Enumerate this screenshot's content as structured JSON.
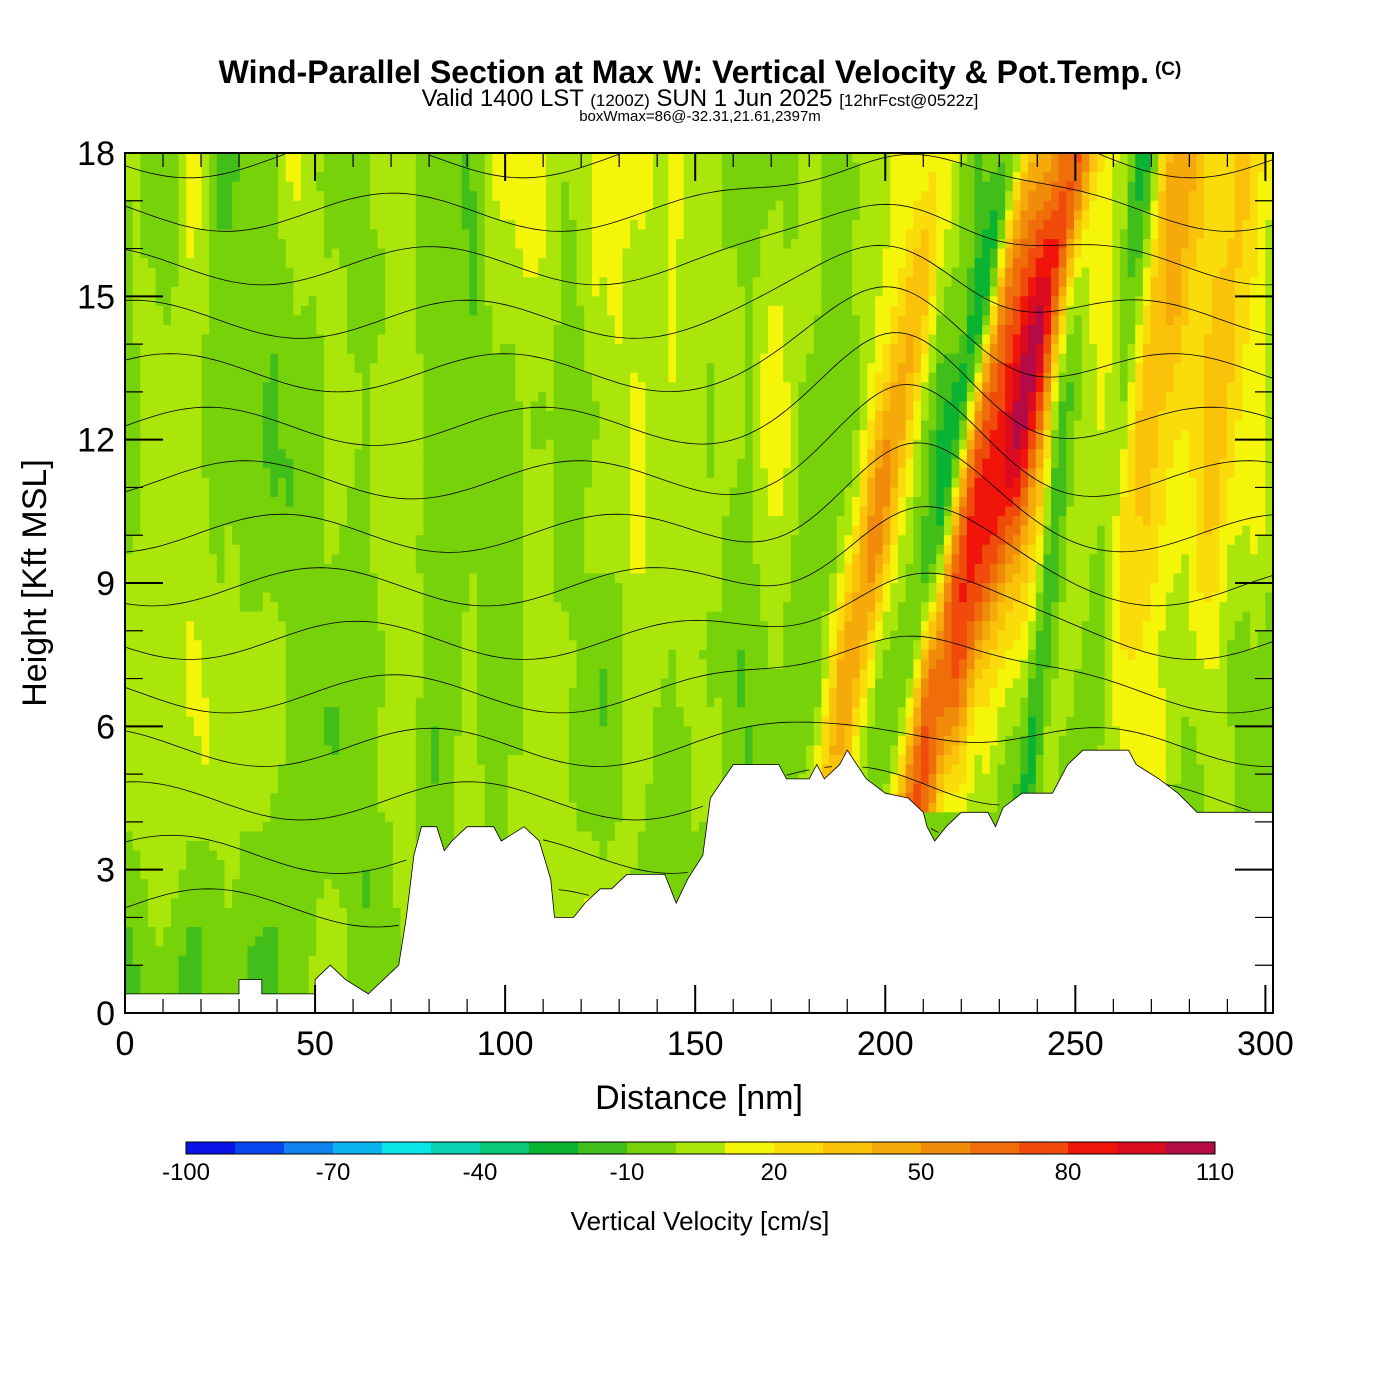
{
  "title": "Wind-Parallel Section at Max W: Vertical Velocity & Pot.Temp.",
  "copyright_mark": "(C)",
  "subtitle": {
    "main": "Valid 1400 LST",
    "utc": "(1200Z)",
    "date": "SUN 1 Jun 2025",
    "forecast": "[12hrFcst@0522z]"
  },
  "box_stat": "boxWmax=86@-32.31,21.61,2397m",
  "chart_data": {
    "type": "heatmap",
    "xlabel": "Distance [nm]",
    "ylabel": "Height [Kft MSL]",
    "xlim": [
      0,
      302
    ],
    "ylim": [
      0,
      18
    ],
    "xticks": [
      "0",
      "50",
      "100",
      "150",
      "200",
      "250",
      "300"
    ],
    "yticks": [
      "0",
      "3",
      "6",
      "9",
      "12",
      "15",
      "18"
    ],
    "colorbar": {
      "label": "Vertical Velocity [cm/s]",
      "tick_labels": [
        "-100",
        "-70",
        "-40",
        "-10",
        "20",
        "50",
        "80",
        "110"
      ],
      "bounds": [
        -100,
        -90,
        -80,
        -70,
        -60,
        -50,
        -40,
        -30,
        -20,
        -10,
        0,
        10,
        20,
        30,
        40,
        50,
        60,
        70,
        80,
        90,
        100,
        110
      ],
      "colors": [
        "#0a14e6",
        "#0a46f0",
        "#0f82f0",
        "#0ab4f0",
        "#0ae6e6",
        "#0ad2b4",
        "#0ac878",
        "#0ab432",
        "#41be19",
        "#78d20a",
        "#aae60a",
        "#f5f50a",
        "#fadc0a",
        "#fac30a",
        "#f5aa0a",
        "#f08c0a",
        "#f06e0a",
        "#f04b0a",
        "#f0140a",
        "#dc0a1e",
        "#b40a46"
      ]
    },
    "terrain_kft": [
      [
        0,
        0.4
      ],
      [
        30,
        0.4
      ],
      [
        30,
        0.7
      ],
      [
        36,
        0.7
      ],
      [
        36,
        0.4
      ],
      [
        50,
        0.4
      ],
      [
        50,
        0.7
      ],
      [
        54,
        1.0
      ],
      [
        58,
        0.7
      ],
      [
        64,
        0.4
      ],
      [
        68,
        0.7
      ],
      [
        72,
        1.0
      ],
      [
        74,
        2.0
      ],
      [
        76,
        3.3
      ],
      [
        78,
        3.9
      ],
      [
        82,
        3.9
      ],
      [
        84,
        3.4
      ],
      [
        86,
        3.6
      ],
      [
        90,
        3.9
      ],
      [
        97,
        3.9
      ],
      [
        99,
        3.6
      ],
      [
        105,
        3.9
      ],
      [
        109,
        3.6
      ],
      [
        112,
        2.8
      ],
      [
        113,
        2.0
      ],
      [
        118,
        2.0
      ],
      [
        121,
        2.3
      ],
      [
        125,
        2.6
      ],
      [
        128,
        2.6
      ],
      [
        132,
        2.9
      ],
      [
        142,
        2.9
      ],
      [
        145,
        2.3
      ],
      [
        148,
        2.8
      ],
      [
        152,
        3.3
      ],
      [
        154,
        4.5
      ],
      [
        160,
        5.2
      ],
      [
        172,
        5.2
      ],
      [
        174,
        4.9
      ],
      [
        180,
        4.9
      ],
      [
        182,
        5.2
      ],
      [
        184,
        4.9
      ],
      [
        188,
        5.2
      ],
      [
        190,
        5.5
      ],
      [
        195,
        4.9
      ],
      [
        200,
        4.6
      ],
      [
        206,
        4.5
      ],
      [
        210,
        4.2
      ],
      [
        211,
        3.9
      ],
      [
        213,
        3.6
      ],
      [
        216,
        3.9
      ],
      [
        220,
        4.2
      ],
      [
        227,
        4.2
      ],
      [
        229,
        3.9
      ],
      [
        231,
        4.3
      ],
      [
        236,
        4.6
      ],
      [
        244,
        4.6
      ],
      [
        248,
        5.2
      ],
      [
        252,
        5.5
      ],
      [
        264,
        5.5
      ],
      [
        266,
        5.2
      ],
      [
        272,
        4.9
      ],
      [
        277,
        4.6
      ],
      [
        282,
        4.2
      ],
      [
        302,
        4.2
      ]
    ],
    "updrafts": [
      {
        "x_surface": 210,
        "slope": 2.2,
        "peak": 85,
        "peak_kft": 8,
        "width_nm": 8
      },
      {
        "x_surface": 186,
        "slope": 2.3,
        "peak": 50,
        "peak_kft": 10,
        "width_nm": 6
      },
      {
        "x_surface": 225,
        "slope": 1.6,
        "peak": 40,
        "peak_kft": 14,
        "width_nm": 6
      },
      {
        "x_surface": 215,
        "slope": 2.8,
        "peak": 40,
        "peak_kft": 16,
        "width_nm": 5
      },
      {
        "x_surface": 258,
        "slope": 1.5,
        "peak": 40,
        "peak_kft": 16,
        "width_nm": 9
      },
      {
        "x_surface": 278,
        "slope": 1.2,
        "peak": 25,
        "peak_kft": 15,
        "width_nm": 6
      },
      {
        "x_surface": 240,
        "slope": 0,
        "peak": 20,
        "peak_kft": 9,
        "width_nm": 6
      }
    ],
    "downdrafts": [
      {
        "x_surface": 202,
        "slope": 2.4,
        "peak": -45,
        "peak_kft": 14,
        "width_nm": 4
      },
      {
        "x_surface": 238,
        "slope": 1.2,
        "peak": -35,
        "peak_kft": 6,
        "width_nm": 3
      },
      {
        "x_surface": 254,
        "slope": 1.1,
        "peak": -35,
        "peak_kft": 16,
        "width_nm": 4
      },
      {
        "x_surface": 215,
        "slope": 0,
        "peak": -20,
        "peak_kft": 5,
        "width_nm": 3
      }
    ],
    "theta_contours_C": [
      20,
      22,
      24,
      26,
      28,
      30,
      32,
      34,
      36,
      38,
      40,
      42,
      44,
      46,
      48
    ]
  }
}
